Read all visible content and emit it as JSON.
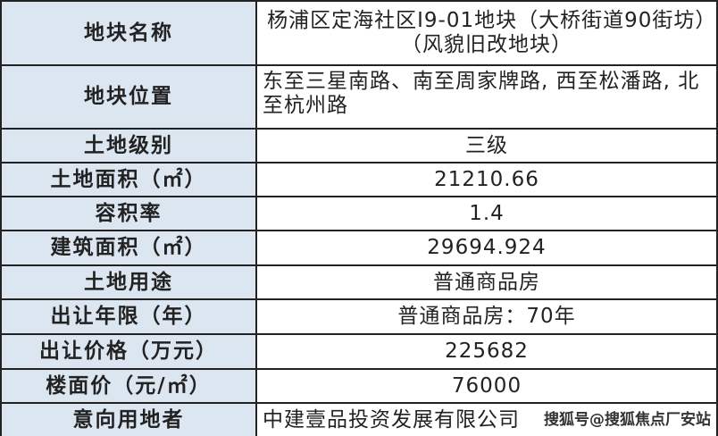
{
  "rows": [
    {
      "label": "地块名称",
      "value": "杨浦区定海社区I9-01地块（大桥街道90街坊）（风貌旧改地块）"
    },
    {
      "label": "地块位置",
      "value": "东至三星南路、南至周家牌路, 西至松潘路, 北至杭州路"
    },
    {
      "label": "土地级别",
      "value": "三级"
    },
    {
      "label": "土地面积（㎡）",
      "value": "21210.66"
    },
    {
      "label": "容积率",
      "value": "1.4"
    },
    {
      "label": "建筑面积（㎡）",
      "value": "29694.924"
    },
    {
      "label": "土地用途",
      "value": "普通商品房"
    },
    {
      "label": "出让年限（年）",
      "value": "普通商品房：70年"
    },
    {
      "label": "出让价格（万元）",
      "value": "225682"
    },
    {
      "label": "楼面价（元/㎡）",
      "value": "76000"
    },
    {
      "label": "意向用地者",
      "value": "中建壹品投资发展有限公司"
    }
  ],
  "watermark": "搜狐号@搜狐焦点厂安站"
}
